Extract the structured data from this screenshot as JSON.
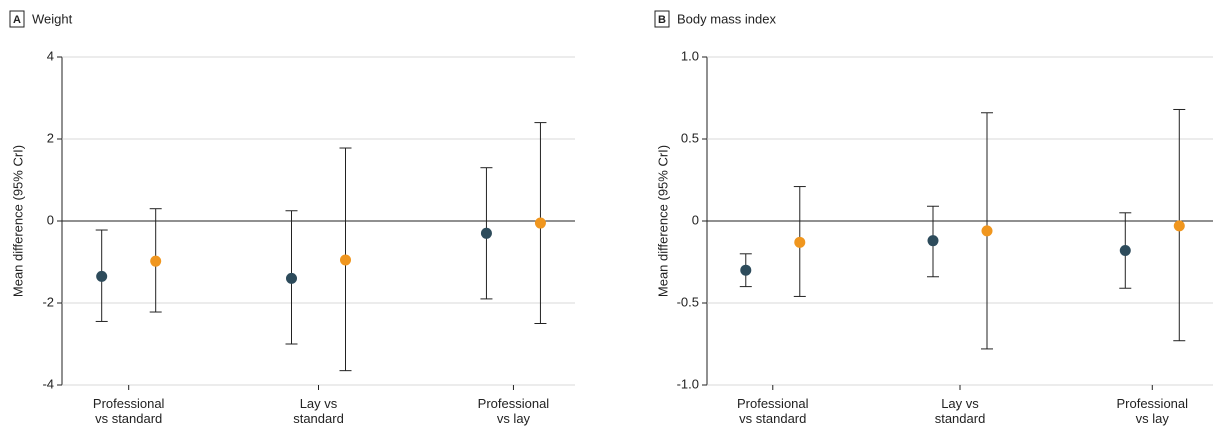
{
  "chart_data": [
    {
      "type": "dot",
      "panel": "A",
      "title": "Weight",
      "y_label": "Mean difference (95% CrI)",
      "categories": [
        "Professional\nvs standard",
        "Lay vs\nstandard",
        "Professional\nvs lay"
      ],
      "ylim": [
        -4,
        4
      ],
      "yticks": [
        -4,
        -2,
        0,
        2,
        4
      ],
      "series": [
        {
          "color": "#2d4b5b",
          "values": [
            -1.35,
            -1.4,
            -0.3
          ],
          "lower": [
            -2.45,
            -3.0,
            -1.9
          ],
          "upper": [
            -0.22,
            0.25,
            1.3
          ]
        },
        {
          "color": "#f0961e",
          "values": [
            -0.98,
            -0.95,
            -0.05
          ],
          "lower": [
            -2.22,
            -3.65,
            -2.5
          ],
          "upper": [
            0.3,
            1.78,
            2.4
          ]
        }
      ]
    },
    {
      "type": "dot",
      "panel": "B",
      "title": "Body mass index",
      "y_label": "Mean difference (95% CrI)",
      "categories": [
        "Professional\nvs standard",
        "Lay vs\nstandard",
        "Professional\nvs lay"
      ],
      "ylim": [
        -1,
        1
      ],
      "yticks": [
        {
          "value": -1,
          "label": "-1.0"
        },
        {
          "value": -0.5,
          "label": "-0.5"
        },
        0,
        {
          "value": 0.5,
          "label": "0.5"
        },
        {
          "value": 1,
          "label": "1.0"
        }
      ],
      "series": [
        {
          "color": "#2d4b5b",
          "values": [
            -0.3,
            -0.12,
            -0.18
          ],
          "lower": [
            -0.4,
            -0.34,
            -0.41
          ],
          "upper": [
            -0.2,
            0.09,
            0.05
          ]
        },
        {
          "color": "#f0961e",
          "values": [
            -0.13,
            -0.06,
            -0.03
          ],
          "lower": [
            -0.46,
            -0.78,
            -0.73
          ],
          "upper": [
            0.21,
            0.66,
            0.68
          ]
        }
      ]
    }
  ]
}
